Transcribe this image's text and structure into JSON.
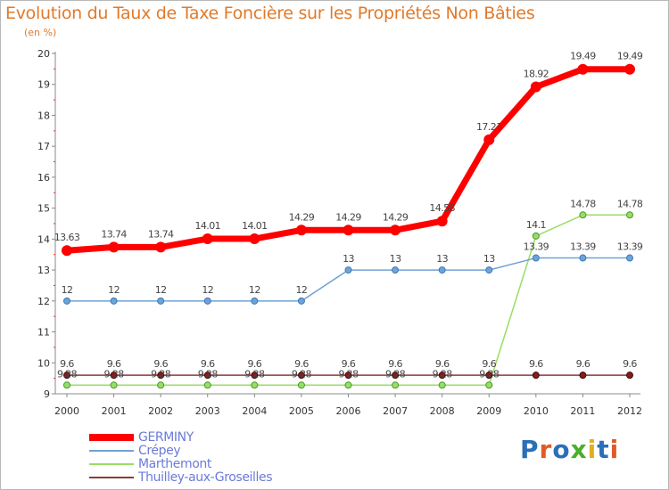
{
  "title": "Evolution du Taux de Taxe Foncière sur les Propriétés Non Bâties",
  "subtitle": "(en %)",
  "logo": {
    "text": "Proxiti",
    "colors": [
      "#2a6fb8",
      "#e05a2a",
      "#2a6fb8",
      "#4caf2a",
      "#e0b020",
      "#2a6fb8",
      "#e05a2a"
    ]
  },
  "chart_data": {
    "type": "line",
    "x": [
      2000,
      2001,
      2002,
      2003,
      2004,
      2005,
      2006,
      2007,
      2008,
      2009,
      2010,
      2011,
      2012
    ],
    "ylim": [
      9,
      20
    ],
    "yticks": [
      9,
      10,
      11,
      12,
      13,
      14,
      15,
      16,
      17,
      18,
      19,
      20
    ],
    "grid": false,
    "legend_position": "bottom-left",
    "series": [
      {
        "name": "GERMINY",
        "color": "#ff0000",
        "values": [
          13.63,
          13.74,
          13.74,
          14.01,
          14.01,
          14.29,
          14.29,
          14.29,
          14.58,
          17.21,
          18.92,
          19.49,
          19.49
        ],
        "labels": [
          "13.63",
          "13.74",
          "13.74",
          "14.01",
          "14.01",
          "14.29",
          "14.29",
          "14.29",
          "14.58",
          "17.21",
          "18.92",
          "19.49",
          "19.49"
        ]
      },
      {
        "name": "Crépey",
        "color": "#6fa3d8",
        "values": [
          12,
          12,
          12,
          12,
          12,
          12,
          13,
          13,
          13,
          13,
          13.39,
          13.39,
          13.39
        ],
        "labels": [
          "12",
          "12",
          "12",
          "12",
          "12",
          "12",
          "13",
          "13",
          "13",
          "13",
          "13.39",
          "13.39",
          "13.39"
        ]
      },
      {
        "name": "Marthemont",
        "color": "#99dd66",
        "values": [
          9.28,
          9.28,
          9.28,
          9.28,
          9.28,
          9.28,
          9.28,
          9.28,
          9.28,
          9.28,
          14.1,
          14.78,
          14.78
        ],
        "labels": [
          "9.28",
          "9.28",
          "9.28",
          "9.28",
          "9.28",
          "9.28",
          "9.28",
          "9.28",
          "9.28",
          "9.28",
          "14.1",
          "14.78",
          "14.78"
        ]
      },
      {
        "name": "Thuilley-aux-Groseilles",
        "color": "#8b3a3a",
        "values": [
          9.6,
          9.6,
          9.6,
          9.6,
          9.6,
          9.6,
          9.6,
          9.6,
          9.6,
          9.6,
          9.6,
          9.6,
          9.6
        ],
        "labels": [
          "9.6",
          "9.6",
          "9.6",
          "9.6",
          "9.6",
          "9.6",
          "9.6",
          "9.6",
          "9.6",
          "9.6",
          "9.6",
          "9.6",
          "9.6"
        ]
      }
    ]
  }
}
